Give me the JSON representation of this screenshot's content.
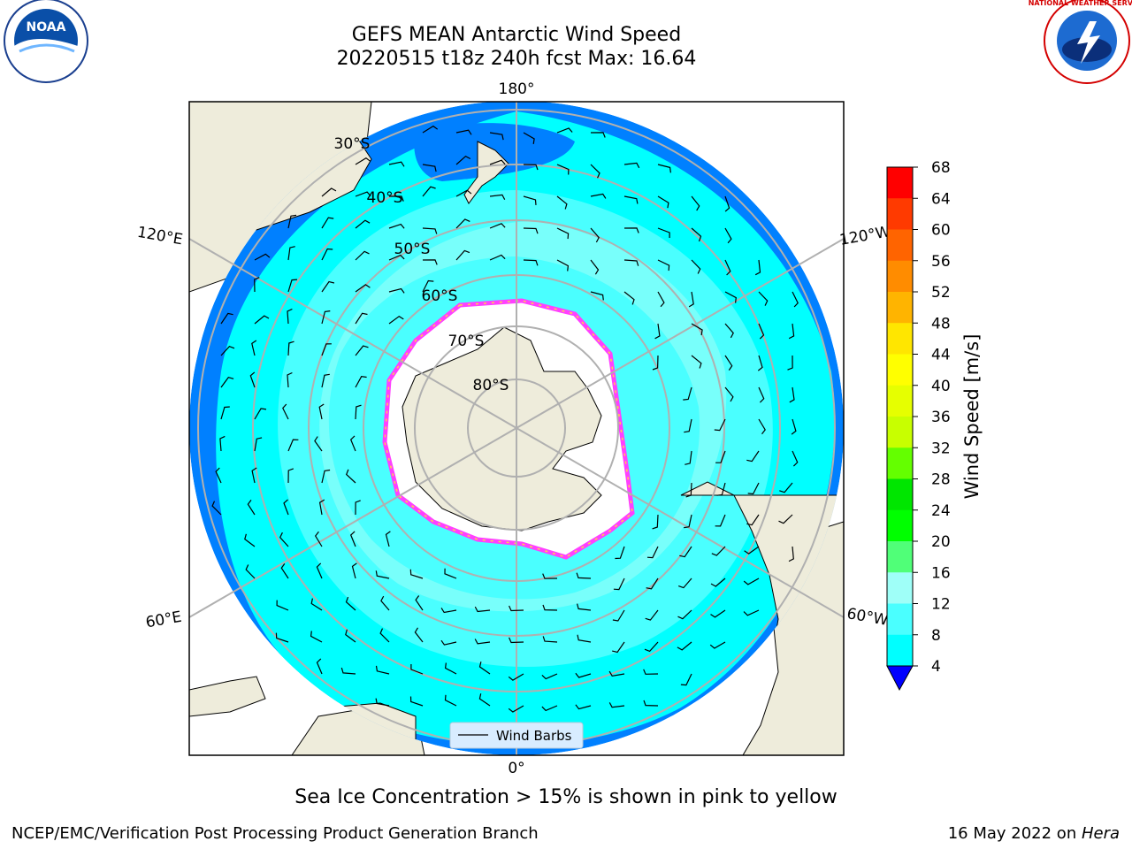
{
  "title": {
    "line1": "GEFS MEAN Antarctic Wind Speed",
    "line2": "20220515 t18z 240h fcst   Max: 16.64"
  },
  "map": {
    "projection": "south polar stereographic",
    "longitude_labels": [
      "180°",
      "120°E",
      "120°W",
      "60°E",
      "60°W",
      "0°"
    ],
    "latitude_labels": [
      "30°S",
      "40°S",
      "50°S",
      "60°S",
      "70°S",
      "80°S"
    ],
    "legend_label": "Wind Barbs",
    "colors": {
      "land": "#eeecdb",
      "ice": "#ffffff",
      "band_4_8": "#0080ff",
      "band_8_12": "#00ffff",
      "band_12_16": "#4affff",
      "band_16_20": "#9ffff8",
      "grid": "#b0b0b0",
      "ice_edge": [
        "#ff40ff",
        "#ffd24a"
      ]
    }
  },
  "colorbar": {
    "label": "Wind Speed [m/s]",
    "ticks": [
      "68",
      "64",
      "60",
      "56",
      "52",
      "48",
      "44",
      "40",
      "36",
      "32",
      "28",
      "24",
      "20",
      "16",
      "12",
      "8",
      "4"
    ],
    "colors": [
      "#ff0000",
      "#ff3a00",
      "#ff6400",
      "#ff8c00",
      "#ffb400",
      "#ffe600",
      "#ffff00",
      "#e6ff00",
      "#c8ff00",
      "#64ff00",
      "#00e600",
      "#00ff00",
      "#50ff78",
      "#9ffff8",
      "#4affff",
      "#00ffff",
      "#0080ff"
    ],
    "extend_color": "#0000ff"
  },
  "logos": {
    "noaa": "NOAA",
    "nws": "NATIONAL WEATHER SERVICE"
  },
  "caption": "Sea Ice Concentration > 15% is shown in pink to yellow",
  "footer": {
    "left": "NCEP/EMC/Verification Post Processing Product Generation Branch",
    "right_prefix": "16 May 2022 on ",
    "right_italic": "Hera"
  }
}
